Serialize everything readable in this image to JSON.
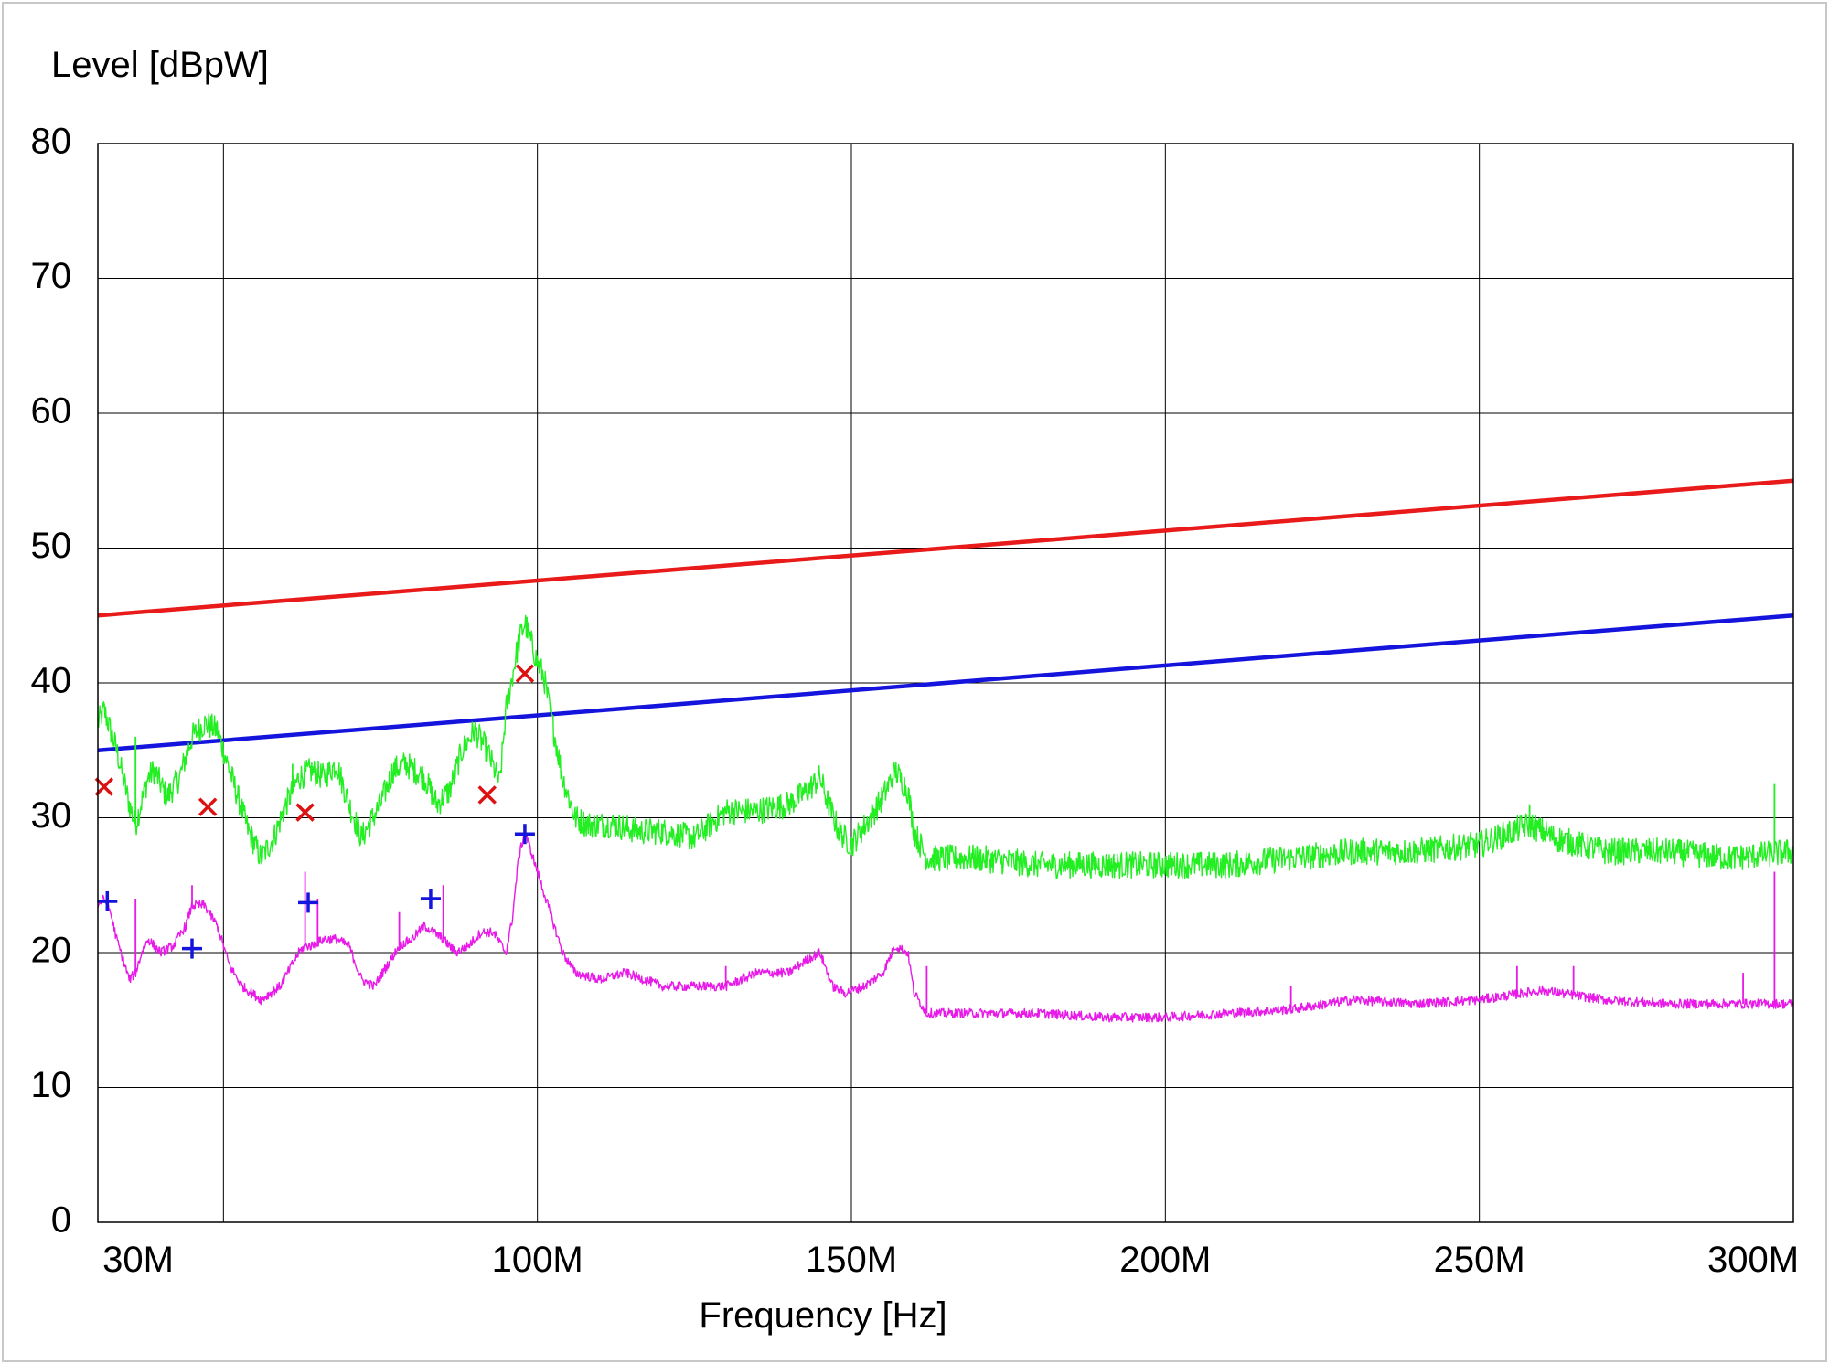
{
  "chart_data": {
    "type": "line",
    "ylabel": "Level [dBpW]",
    "xlabel": "Frequency [Hz]",
    "xlim": [
      30000000,
      300000000
    ],
    "ylim": [
      0,
      80
    ],
    "grid": true,
    "x_ticks": [
      {
        "value": 30000000,
        "label": "30M"
      },
      {
        "value": 50000000,
        "label": ""
      },
      {
        "value": 100000000,
        "label": "100M"
      },
      {
        "value": 150000000,
        "label": "150M"
      },
      {
        "value": 200000000,
        "label": "200M"
      },
      {
        "value": 250000000,
        "label": "250M"
      },
      {
        "value": 300000000,
        "label": "300M"
      }
    ],
    "y_ticks": [
      0,
      10,
      20,
      30,
      40,
      50,
      60,
      70,
      80
    ],
    "limit_lines": [
      {
        "color": "#e81a1a",
        "x": [
          30000000,
          300000000
        ],
        "y": [
          45,
          55
        ]
      },
      {
        "color": "#1414dc",
        "x": [
          30000000,
          300000000
        ],
        "y": [
          35,
          45
        ]
      }
    ],
    "series": [
      {
        "color": "#22ee22",
        "noise": 1.0,
        "x": [
          30,
          31,
          33,
          35,
          36,
          38,
          39,
          41,
          43,
          45,
          47,
          49,
          50,
          52,
          54,
          56,
          58,
          60,
          62,
          64,
          66,
          68,
          70,
          72,
          75,
          77,
          79,
          82,
          84,
          86,
          88,
          90,
          92,
          94,
          95,
          97,
          98,
          99,
          100,
          101,
          102,
          104,
          106,
          108,
          112,
          116,
          120,
          125,
          130,
          135,
          140,
          143,
          145,
          146,
          148,
          150,
          153,
          155,
          157,
          159,
          160,
          162,
          170,
          180,
          190,
          200,
          210,
          220,
          230,
          240,
          250,
          258,
          262,
          270,
          280,
          290,
          300
        ],
        "y": [
          37,
          38,
          35,
          31,
          29.5,
          33,
          33.5,
          31.5,
          33,
          36,
          37,
          36.5,
          35,
          32,
          29,
          27,
          28.5,
          31,
          33,
          33.5,
          33,
          34,
          31,
          28.5,
          31,
          33.5,
          34,
          33,
          31,
          32,
          35,
          36.5,
          35,
          32.5,
          38,
          43,
          44.5,
          43,
          41.5,
          40.5,
          38,
          33,
          30,
          29.5,
          29.5,
          29,
          29,
          28.5,
          30.5,
          30.5,
          31,
          32,
          33,
          31.5,
          29,
          28,
          30,
          31.5,
          33.5,
          32,
          29,
          27,
          27,
          26.5,
          26.5,
          26.5,
          26.5,
          27,
          27.5,
          27.5,
          28,
          29.5,
          28.5,
          27.5,
          27.5,
          27,
          27.5
        ]
      },
      {
        "color": "#e81ae8",
        "noise": 0.35,
        "x": [
          30,
          31,
          32,
          33,
          35,
          36,
          37,
          38,
          40,
          42,
          44,
          45,
          47,
          49,
          51,
          53,
          56,
          59,
          62,
          63,
          64,
          66,
          68,
          70,
          72,
          74,
          76,
          78,
          80,
          82,
          85,
          87,
          89,
          91,
          93,
          95,
          96,
          97,
          98,
          99,
          100,
          102,
          104,
          106,
          110,
          114,
          117,
          120,
          125,
          130,
          135,
          140,
          143,
          145,
          147,
          149,
          152,
          155,
          157,
          159,
          160,
          162,
          170,
          180,
          190,
          200,
          210,
          220,
          230,
          240,
          250,
          260,
          270,
          280,
          290,
          300
        ],
        "y": [
          23.5,
          24,
          23,
          21,
          18,
          18.5,
          20,
          21,
          20,
          20.5,
          22,
          23.5,
          23.5,
          22,
          19,
          17.5,
          16.5,
          17.5,
          20,
          20.5,
          20.5,
          21,
          21,
          20.5,
          18,
          17.5,
          19,
          20.5,
          21,
          22,
          21,
          20,
          20.5,
          21.5,
          21.5,
          20,
          22.5,
          27,
          29,
          27.5,
          26,
          23,
          20,
          18.5,
          18,
          18.5,
          18,
          17.5,
          17.5,
          17.5,
          18.5,
          18.5,
          19.5,
          20,
          17.5,
          17,
          17.5,
          18.5,
          20.5,
          20,
          17,
          15.5,
          15.5,
          15.5,
          15.2,
          15.2,
          15.5,
          15.8,
          16.5,
          16.2,
          16.5,
          17.2,
          16.5,
          16.2,
          16.2,
          16.2
        ]
      }
    ],
    "spikes": [
      {
        "color": "#e81ae8",
        "x": [
          36,
          45,
          63,
          65,
          78,
          85,
          98,
          130,
          162,
          220,
          256,
          265,
          292,
          297
        ],
        "top": [
          24,
          25,
          26,
          24,
          23,
          25,
          29,
          19,
          19,
          17.5,
          19,
          19,
          18.5,
          26
        ]
      },
      {
        "color": "#22ee22",
        "x": [
          36,
          61,
          258,
          297
        ],
        "top": [
          36,
          34,
          31,
          32.5
        ]
      }
    ],
    "markers": [
      {
        "symbol": "x",
        "color": "#dd1111",
        "x": [
          31,
          47.5,
          63,
          92,
          98
        ],
        "y": [
          32.3,
          30.8,
          30.4,
          31.7,
          40.7
        ]
      },
      {
        "symbol": "+",
        "color": "#1414dc",
        "x": [
          31.5,
          45,
          63.5,
          83,
          98
        ],
        "y": [
          23.8,
          20.3,
          23.7,
          24,
          28.8
        ]
      }
    ]
  }
}
